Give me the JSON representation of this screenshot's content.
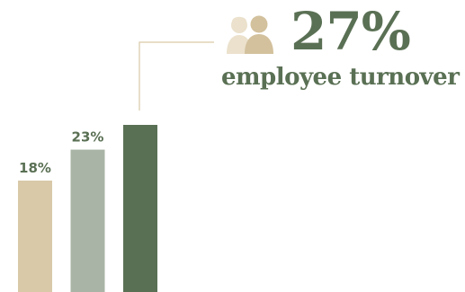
{
  "colors": {
    "bar_1": "#d9c9a8",
    "bar_2": "#a9b4a6",
    "bar_3": "#5a7054",
    "label_text": "#5a7054",
    "headline_text": "#5a7054",
    "leader_line": "#d9c9a8",
    "icon_front": "#d3c19d",
    "icon_back": "#ebe1cc"
  },
  "headline": {
    "value": "27%",
    "caption": "employee turnover",
    "icon": "people-icon"
  },
  "chart_data": {
    "type": "bar",
    "categories": [
      "",
      "",
      ""
    ],
    "values": [
      18,
      23,
      27
    ],
    "data_labels": [
      "18%",
      "23%",
      ""
    ],
    "title": "",
    "xlabel": "",
    "ylabel": "",
    "ylim": [
      0,
      27
    ],
    "grid": false,
    "legend": "none"
  }
}
